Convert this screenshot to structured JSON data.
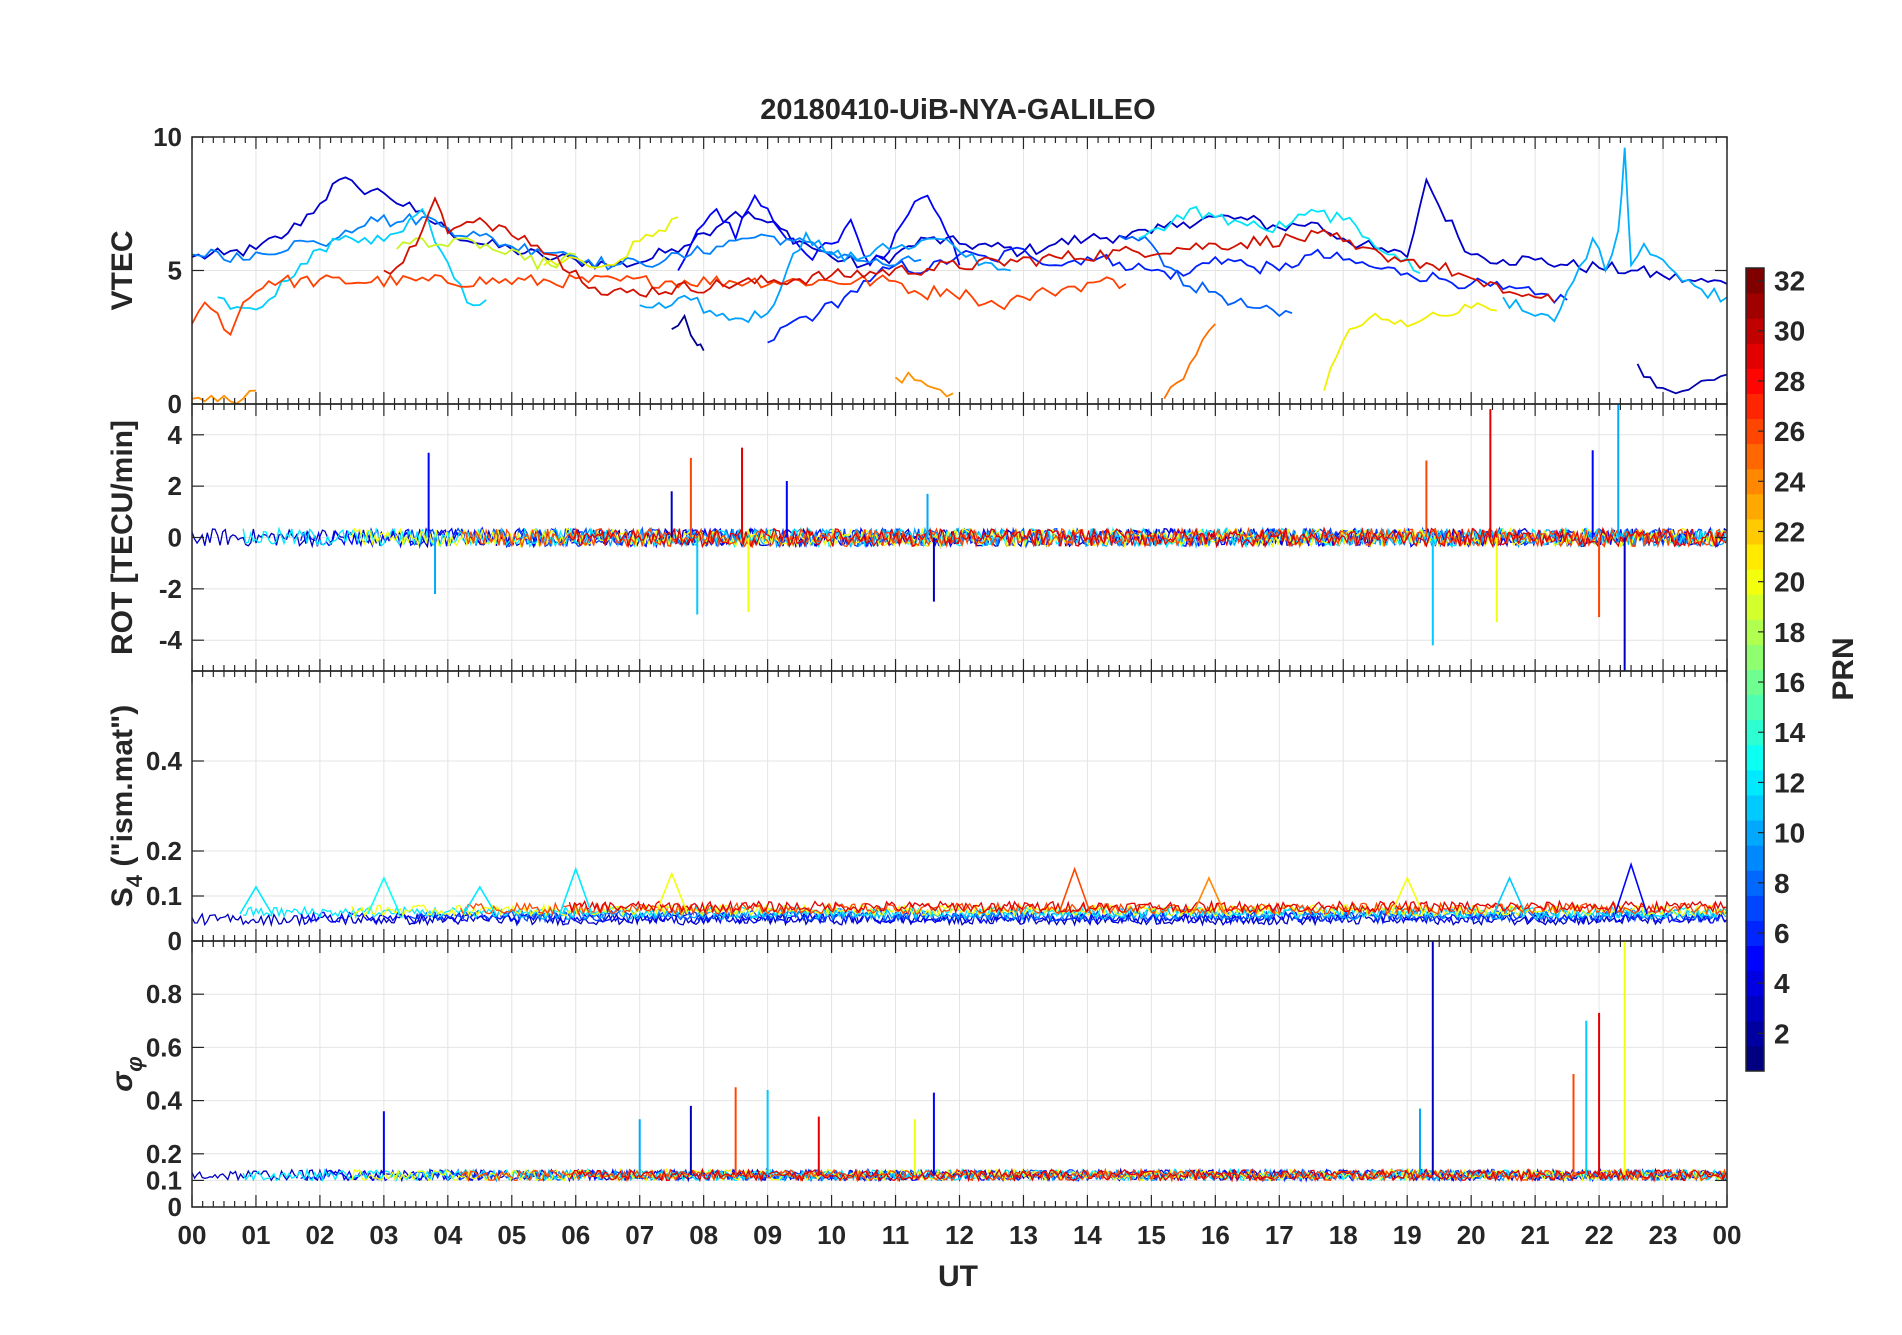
{
  "chart_data": {
    "type": "line",
    "title": "20180410-UiB-NYA-GALILEO",
    "xlabel": "UT",
    "x_range_hours": [
      0,
      24
    ],
    "x_ticks": [
      "00",
      "01",
      "02",
      "03",
      "04",
      "05",
      "06",
      "07",
      "08",
      "09",
      "10",
      "11",
      "12",
      "13",
      "14",
      "15",
      "16",
      "17",
      "18",
      "19",
      "20",
      "21",
      "22",
      "23",
      "00"
    ],
    "grid": true,
    "colorbar": {
      "label": "PRN",
      "colormap": "jet",
      "range": [
        1,
        32
      ],
      "ticks": [
        "2",
        "4",
        "6",
        "8",
        "10",
        "12",
        "14",
        "16",
        "18",
        "20",
        "22",
        "24",
        "26",
        "28",
        "30",
        "32"
      ],
      "placement": "right"
    },
    "panels": [
      {
        "name": "vtec",
        "ylabel": "VTEC",
        "ylim": [
          0,
          10
        ],
        "yticks": [
          0,
          5,
          10
        ],
        "ytick_labels": [
          "0",
          "5",
          "10"
        ],
        "series": [
          {
            "prn": 3,
            "color": "#0000c8",
            "x": [
              0,
              0.5,
              1,
              1.5,
              2,
              2.3,
              2.6,
              3,
              3.5,
              4,
              4.5,
              5,
              5.5,
              6,
              6.5,
              7,
              7.5,
              8,
              8.5,
              9,
              9.5,
              10,
              10.5,
              11,
              11.5,
              12,
              12.5,
              13,
              13.5,
              14,
              14.5,
              15,
              15.5,
              16,
              16.5,
              17,
              17.5,
              18,
              18.5,
              19,
              19.3,
              19.5,
              20,
              20.5,
              21,
              21.5,
              22,
              22.5,
              23,
              23.5,
              24
            ],
            "y": [
              5.5,
              5.6,
              5.8,
              6.4,
              7.5,
              8.4,
              8.1,
              7.9,
              7.2,
              6.5,
              6.0,
              5.8,
              5.5,
              5.4,
              5.2,
              5.3,
              5.8,
              6.4,
              7.2,
              6.8,
              6.1,
              5.5,
              5.2,
              5.6,
              6.2,
              6.0,
              5.9,
              5.7,
              6.0,
              6.2,
              6.3,
              6.4,
              6.8,
              7.0,
              6.9,
              6.6,
              6.8,
              6.2,
              5.8,
              5.5,
              8.4,
              7.4,
              5.6,
              5.4,
              5.4,
              5.2,
              5.1,
              5.0,
              4.8,
              4.6,
              4.5
            ]
          },
          {
            "prn": 1,
            "color": "#00008f",
            "x": [
              7.5,
              7.7,
              7.9,
              8.0
            ],
            "y": [
              2.8,
              3.3,
              2.2,
              2.0
            ]
          },
          {
            "prn": 2,
            "color": "#0000af",
            "x": [
              22.6,
              22.8,
              23.0,
              23.2,
              23.5,
              23.8,
              24
            ],
            "y": [
              1.5,
              1.0,
              0.6,
              0.4,
              0.7,
              0.9,
              1.1
            ]
          },
          {
            "prn": 5,
            "color": "#0000ff",
            "x": [
              7.6,
              7.9,
              8.2,
              8.5,
              8.8,
              9.1,
              9.4,
              9.7,
              10.0,
              10.3,
              10.6,
              10.9,
              11.2,
              11.5,
              11.8,
              12.0
            ],
            "y": [
              5.0,
              6.5,
              7.3,
              6.2,
              7.8,
              6.8,
              6.2,
              5.4,
              6.0,
              6.9,
              5.2,
              5.7,
              7.1,
              7.8,
              6.4,
              5.2
            ]
          },
          {
            "prn": 6,
            "color": "#0020ff",
            "x": [
              9.0,
              9.4,
              9.8,
              10.2,
              10.6,
              11.0,
              11.5,
              12.0,
              12.5,
              13.0,
              13.5,
              14.0,
              14.5,
              15.0,
              15.5,
              16.0,
              16.5,
              17.0,
              17.5,
              18.0,
              18.5,
              19.0,
              19.5,
              20.0,
              20.5,
              21.0,
              21.5
            ],
            "y": [
              2.3,
              3.1,
              3.4,
              4.0,
              4.6,
              5.2,
              5.0,
              5.6,
              5.4,
              5.8,
              5.2,
              5.5,
              5.3,
              5.0,
              4.8,
              5.5,
              5.2,
              5.0,
              5.6,
              5.4,
              5.1,
              4.9,
              4.7,
              4.5,
              4.3,
              4.1,
              3.9
            ]
          },
          {
            "prn": 8,
            "color": "#0060ff",
            "x": [
              14.5,
              15.0,
              15.3,
              15.6,
              16.0,
              16.3,
              16.6,
              17.0,
              17.2
            ],
            "y": [
              6.3,
              6.0,
              5.1,
              4.4,
              4.2,
              3.8,
              3.6,
              3.3,
              3.4
            ]
          },
          {
            "prn": 9,
            "color": "#0080ff",
            "x": [
              0,
              0.4,
              0.8,
              1.2,
              1.6,
              2.0,
              2.4,
              2.8,
              3.2,
              3.6,
              4.0,
              4.5,
              5.0,
              5.4,
              5.8,
              6.2,
              6.6,
              7.0,
              7.4,
              7.8,
              8.2,
              8.6,
              9.0,
              9.4,
              9.8,
              10.2,
              10.6,
              11.0,
              11.4
            ],
            "y": [
              5.6,
              5.7,
              5.4,
              5.6,
              6.1,
              6.0,
              6.5,
              7.0,
              6.8,
              7.0,
              6.6,
              6.3,
              5.9,
              5.8,
              5.7,
              5.4,
              5.2,
              5.3,
              5.4,
              5.6,
              5.9,
              6.2,
              6.3,
              6.1,
              5.8,
              5.6,
              5.3,
              5.2,
              5.4
            ]
          },
          {
            "prn": 10,
            "color": "#00a0ff",
            "x": [
              7.0,
              7.4,
              7.8,
              8.2,
              8.6,
              9.0,
              9.3,
              9.6,
              10.0,
              10.4,
              10.8,
              11.2,
              11.6,
              12.0,
              12.4,
              12.8
            ],
            "y": [
              3.7,
              3.6,
              3.9,
              3.3,
              3.2,
              3.4,
              5.0,
              6.4,
              5.6,
              5.4,
              6.0,
              5.8,
              6.2,
              5.7,
              5.3,
              5.0
            ]
          },
          {
            "prn": 11,
            "color": "#00b0ff",
            "x": [
              20.5,
              20.8,
              21.0,
              21.3,
              21.6,
              21.9,
              22.1,
              22.3,
              22.4,
              22.5,
              22.7,
              23.0,
              23.3,
              23.6,
              24
            ],
            "y": [
              4.0,
              3.5,
              3.3,
              3.1,
              4.6,
              6.2,
              5.0,
              6.5,
              9.6,
              5.2,
              6.0,
              5.4,
              4.6,
              4.3,
              4.0
            ]
          },
          {
            "prn": 12,
            "color": "#00d0ff",
            "x": [
              0.4,
              0.8,
              1.2,
              1.6,
              2.0,
              2.4,
              2.8,
              3.2,
              3.6,
              4.0,
              4.3,
              4.6
            ],
            "y": [
              4.0,
              3.6,
              3.9,
              4.8,
              5.8,
              6.3,
              6.0,
              6.4,
              7.3,
              5.3,
              3.8,
              3.9
            ]
          },
          {
            "prn": 13,
            "color": "#00e5f5",
            "x": [
              14.8,
              15.2,
              15.6,
              16.0,
              16.4,
              16.8,
              17.2,
              17.6,
              18.0,
              18.4,
              18.8,
              19.2
            ],
            "y": [
              6.2,
              6.5,
              7.3,
              7.0,
              6.8,
              6.5,
              6.8,
              7.2,
              6.9,
              6.2,
              5.6,
              4.9
            ]
          },
          {
            "prn": 20,
            "color": "#e6f200",
            "x": [
              5.5,
              5.9,
              6.3,
              6.7,
              7.0,
              7.3,
              7.6
            ],
            "y": [
              5.2,
              5.5,
              5.1,
              5.4,
              6.1,
              6.5,
              7.0
            ]
          },
          {
            "prn": 19,
            "color": "#c8f522",
            "x": [
              3.2,
              3.6,
              4.0,
              4.4,
              4.8,
              5.2,
              5.6,
              6.0
            ],
            "y": [
              5.8,
              6.2,
              5.9,
              6.1,
              5.7,
              5.4,
              5.2,
              5.6
            ]
          },
          {
            "prn": 21,
            "color": "#f0f000",
            "x": [
              17.7,
              17.9,
              18.1,
              18.4,
              18.8,
              19.2,
              19.6,
              20.0,
              20.4
            ],
            "y": [
              0.5,
              1.8,
              2.8,
              3.2,
              3.0,
              3.1,
              3.3,
              3.6,
              3.5
            ]
          },
          {
            "prn": 23,
            "color": "#ff9000",
            "x": [
              11.0,
              11.3,
              11.6,
              11.9,
              0.0,
              0.2,
              0.4,
              0.6,
              0.8,
              1.0
            ],
            "y": [
              1.0,
              0.9,
              0.6,
              0.4,
              0.2,
              0.1,
              0.1,
              0.1,
              0.2,
              0.5
            ]
          },
          {
            "prn": 24,
            "color": "#ff7000",
            "x": [
              15.2,
              15.4,
              15.6,
              15.8,
              16.0
            ],
            "y": [
              0.2,
              0.8,
              1.5,
              2.4,
              3.0
            ]
          },
          {
            "prn": 26,
            "color": "#ff4000",
            "x": [
              0,
              0.2,
              0.4,
              0.6,
              0.8,
              1.0,
              1.2,
              11.0,
              11.4,
              11.8,
              12.2,
              12.6,
              13.0,
              13.4,
              13.8,
              14.2,
              14.6
            ],
            "y": [
              3.0,
              3.8,
              3.4,
              2.6,
              3.8,
              4.2,
              4.6,
              4.6,
              4.1,
              4.3,
              4.0,
              3.7,
              4.0,
              4.2,
              4.4,
              4.6,
              4.5
            ]
          },
          {
            "prn": 29,
            "color": "#d21000",
            "x": [
              3.0,
              3.3,
              3.6,
              3.8,
              4.0,
              4.4,
              4.8,
              5.2,
              5.6,
              6.0,
              6.4,
              17.8,
              18.2,
              18.6,
              19.0,
              19.4,
              19.8,
              20.2,
              20.6,
              21.0,
              21.3
            ],
            "y": [
              5.0,
              5.3,
              6.5,
              7.7,
              6.4,
              6.8,
              6.7,
              6.3,
              5.6,
              5.0,
              4.1,
              6.3,
              5.8,
              5.6,
              5.4,
              5.2,
              4.9,
              4.4,
              4.2,
              4.0,
              3.8
            ]
          }
        ]
      },
      {
        "name": "rot",
        "ylabel": "ROT [TECU/min]",
        "ylim": [
          -5.2,
          5.2
        ],
        "yticks": [
          -4,
          -2,
          0,
          2,
          4
        ],
        "ytick_labels": [
          "-4",
          "-2",
          "0",
          "2",
          "4"
        ],
        "baseline": 0,
        "spikes": [
          {
            "x": 3.7,
            "y": 3.3
          },
          {
            "x": 3.8,
            "y": -2.2
          },
          {
            "x": 7.5,
            "y": 1.8
          },
          {
            "x": 7.8,
            "y": 3.1
          },
          {
            "x": 7.9,
            "y": -3.0
          },
          {
            "x": 8.6,
            "y": 3.5
          },
          {
            "x": 8.7,
            "y": -2.9
          },
          {
            "x": 9.3,
            "y": 2.2
          },
          {
            "x": 11.5,
            "y": 1.7
          },
          {
            "x": 11.6,
            "y": -2.5
          },
          {
            "x": 19.3,
            "y": 3.0
          },
          {
            "x": 19.4,
            "y": -4.2
          },
          {
            "x": 20.3,
            "y": 5.0
          },
          {
            "x": 20.4,
            "y": -3.3
          },
          {
            "x": 21.9,
            "y": 3.4
          },
          {
            "x": 22.3,
            "y": 5.2
          },
          {
            "x": 22.4,
            "y": -5.2
          },
          {
            "x": 22.0,
            "y": -3.1
          }
        ]
      },
      {
        "name": "s4",
        "ylabel": "S4 (\"ism.mat\")",
        "ylabel_main": "S",
        "ylabel_sub": "4",
        "ylabel_rest": " (\"ism.mat\")",
        "ylim": [
          0,
          0.6
        ],
        "yticks": [
          0,
          0.1,
          0.2,
          0.4
        ],
        "ytick_labels": [
          "0",
          "0.1",
          "0.2",
          "0.4"
        ],
        "baseline": 0.06,
        "peaks": [
          {
            "x": 1.0,
            "y": 0.12
          },
          {
            "x": 3.0,
            "y": 0.14
          },
          {
            "x": 4.5,
            "y": 0.12
          },
          {
            "x": 6.0,
            "y": 0.16
          },
          {
            "x": 7.5,
            "y": 0.15
          },
          {
            "x": 13.8,
            "y": 0.16
          },
          {
            "x": 15.9,
            "y": 0.14
          },
          {
            "x": 19.0,
            "y": 0.14
          },
          {
            "x": 20.6,
            "y": 0.14
          },
          {
            "x": 22.5,
            "y": 0.17
          }
        ]
      },
      {
        "name": "sigma_phi",
        "ylabel": "σφ",
        "ylabel_main": "σ",
        "ylabel_sub": "φ",
        "ylim": [
          0,
          1.0
        ],
        "yticks": [
          0,
          0.1,
          0.2,
          0.4,
          0.6,
          0.8
        ],
        "ytick_labels": [
          "0",
          "0.1",
          "0.2",
          "0.4",
          "0.6",
          "0.8"
        ],
        "baseline": 0.12,
        "spikes": [
          {
            "x": 3.0,
            "y": 0.36
          },
          {
            "x": 7.0,
            "y": 0.33
          },
          {
            "x": 7.8,
            "y": 0.38
          },
          {
            "x": 8.5,
            "y": 0.45
          },
          {
            "x": 9.0,
            "y": 0.44
          },
          {
            "x": 9.8,
            "y": 0.34
          },
          {
            "x": 11.3,
            "y": 0.33
          },
          {
            "x": 11.6,
            "y": 0.43
          },
          {
            "x": 19.2,
            "y": 0.37
          },
          {
            "x": 19.4,
            "y": 1.0
          },
          {
            "x": 21.6,
            "y": 0.5
          },
          {
            "x": 21.8,
            "y": 0.7
          },
          {
            "x": 22.0,
            "y": 0.73
          },
          {
            "x": 22.4,
            "y": 1.0
          }
        ]
      }
    ]
  }
}
